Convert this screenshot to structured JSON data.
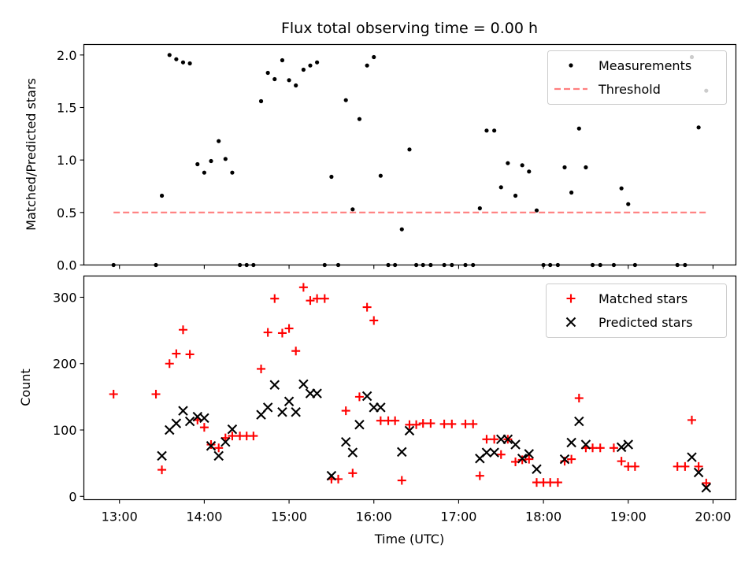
{
  "chart_data": [
    {
      "type": "scatter",
      "title": "Flux total observing time = 0.00 h",
      "xlabel": "",
      "ylabel": "Matched/Predicted stars",
      "xlim": [
        12.58,
        20.27
      ],
      "ylim": [
        0,
        2.1
      ],
      "x_ticks": [
        "13:00",
        "14:00",
        "15:00",
        "16:00",
        "17:00",
        "18:00",
        "19:00",
        "20:00"
      ],
      "y_ticks": [
        "0.0",
        "0.5",
        "1.0",
        "1.5",
        "2.0"
      ],
      "legend_position": "top-right",
      "grid": false,
      "series": [
        {
          "name": "Measurements",
          "marker": "dot",
          "color": "#000000",
          "points": [
            [
              12.93,
              0
            ],
            [
              13.43,
              0
            ],
            [
              13.5,
              0.66
            ],
            [
              13.59,
              2.0
            ],
            [
              13.67,
              1.96
            ],
            [
              13.75,
              1.93
            ],
            [
              13.83,
              1.92
            ],
            [
              13.92,
              0.96
            ],
            [
              14.0,
              0.88
            ],
            [
              14.08,
              0.99
            ],
            [
              14.17,
              1.18
            ],
            [
              14.25,
              1.01
            ],
            [
              14.33,
              0.88
            ],
            [
              14.42,
              0
            ],
            [
              14.5,
              0
            ],
            [
              14.58,
              0
            ],
            [
              14.67,
              1.56
            ],
            [
              14.75,
              1.83
            ],
            [
              14.83,
              1.77
            ],
            [
              14.92,
              1.95
            ],
            [
              15.0,
              1.76
            ],
            [
              15.08,
              1.71
            ],
            [
              15.17,
              1.86
            ],
            [
              15.25,
              1.9
            ],
            [
              15.33,
              1.93
            ],
            [
              15.42,
              0
            ],
            [
              15.5,
              0.84
            ],
            [
              15.58,
              0
            ],
            [
              15.67,
              1.57
            ],
            [
              15.75,
              0.53
            ],
            [
              15.83,
              1.39
            ],
            [
              15.92,
              1.9
            ],
            [
              16.0,
              1.98
            ],
            [
              16.08,
              0.85
            ],
            [
              16.17,
              0
            ],
            [
              16.25,
              0
            ],
            [
              16.33,
              0.34
            ],
            [
              16.42,
              1.1
            ],
            [
              16.5,
              0
            ],
            [
              16.58,
              0
            ],
            [
              16.67,
              0
            ],
            [
              16.83,
              0
            ],
            [
              16.92,
              0
            ],
            [
              17.08,
              0
            ],
            [
              17.17,
              0
            ],
            [
              17.25,
              0.54
            ],
            [
              17.33,
              1.28
            ],
            [
              17.42,
              1.28
            ],
            [
              17.5,
              0.74
            ],
            [
              17.58,
              0.97
            ],
            [
              17.67,
              0.66
            ],
            [
              17.75,
              0.95
            ],
            [
              17.83,
              0.89
            ],
            [
              17.92,
              0.52
            ],
            [
              18.0,
              0
            ],
            [
              18.08,
              0
            ],
            [
              18.17,
              0
            ],
            [
              18.25,
              0.93
            ],
            [
              18.33,
              0.69
            ],
            [
              18.42,
              1.3
            ],
            [
              18.5,
              0.93
            ],
            [
              18.58,
              0
            ],
            [
              18.67,
              0
            ],
            [
              18.83,
              0
            ],
            [
              18.92,
              0.73
            ],
            [
              19.0,
              0.58
            ],
            [
              19.08,
              0
            ],
            [
              19.58,
              0
            ],
            [
              19.67,
              0
            ],
            [
              19.75,
              1.98
            ],
            [
              19.83,
              1.31
            ],
            [
              19.92,
              1.66
            ]
          ]
        },
        {
          "name": "Threshold",
          "marker": "dashed-line",
          "color": "#ff7f7f",
          "points": [
            [
              12.93,
              0.5
            ],
            [
              19.92,
              0.5
            ]
          ]
        }
      ]
    },
    {
      "type": "scatter",
      "title": "",
      "xlabel": "Time (UTC)",
      "ylabel": "Count",
      "xlim": [
        12.58,
        20.27
      ],
      "ylim": [
        -5,
        332
      ],
      "x_ticks": [
        "13:00",
        "14:00",
        "15:00",
        "16:00",
        "17:00",
        "18:00",
        "19:00",
        "20:00"
      ],
      "y_ticks": [
        "0",
        "100",
        "200",
        "300"
      ],
      "legend_position": "top-right",
      "grid": false,
      "series": [
        {
          "name": "Matched stars",
          "marker": "plus",
          "color": "#ff0000",
          "points": [
            [
              12.93,
              154
            ],
            [
              13.43,
              154
            ],
            [
              13.5,
              40
            ],
            [
              13.59,
              200
            ],
            [
              13.67,
              215
            ],
            [
              13.75,
              251
            ],
            [
              13.83,
              214
            ],
            [
              13.92,
              115
            ],
            [
              14.0,
              104
            ],
            [
              14.08,
              78
            ],
            [
              14.17,
              73
            ],
            [
              14.25,
              88
            ],
            [
              14.33,
              91
            ],
            [
              14.42,
              91
            ],
            [
              14.5,
              91
            ],
            [
              14.58,
              91
            ],
            [
              14.67,
              192
            ],
            [
              14.75,
              247
            ],
            [
              14.83,
              298
            ],
            [
              14.92,
              246
            ],
            [
              15.0,
              253
            ],
            [
              15.08,
              219
            ],
            [
              15.17,
              315
            ],
            [
              15.25,
              295
            ],
            [
              15.33,
              298
            ],
            [
              15.42,
              298
            ],
            [
              15.5,
              26
            ],
            [
              15.58,
              26
            ],
            [
              15.67,
              129
            ],
            [
              15.75,
              35
            ],
            [
              15.83,
              150
            ],
            [
              15.92,
              285
            ],
            [
              16.0,
              265
            ],
            [
              16.08,
              114
            ],
            [
              16.17,
              114
            ],
            [
              16.25,
              114
            ],
            [
              16.33,
              24
            ],
            [
              16.42,
              108
            ],
            [
              16.5,
              108
            ],
            [
              16.58,
              110
            ],
            [
              16.67,
              110
            ],
            [
              16.83,
              109
            ],
            [
              16.92,
              109
            ],
            [
              17.08,
              109
            ],
            [
              17.17,
              109
            ],
            [
              17.25,
              31
            ],
            [
              17.33,
              86
            ],
            [
              17.42,
              86
            ],
            [
              17.5,
              63
            ],
            [
              17.58,
              86
            ],
            [
              17.67,
              52
            ],
            [
              17.75,
              55
            ],
            [
              17.83,
              56
            ],
            [
              17.92,
              21
            ],
            [
              18.0,
              21
            ],
            [
              18.08,
              21
            ],
            [
              18.17,
              21
            ],
            [
              18.25,
              53
            ],
            [
              18.33,
              56
            ],
            [
              18.42,
              148
            ],
            [
              18.5,
              73
            ],
            [
              18.58,
              73
            ],
            [
              18.67,
              73
            ],
            [
              18.83,
              73
            ],
            [
              18.92,
              53
            ],
            [
              19.0,
              45
            ],
            [
              19.08,
              45
            ],
            [
              19.58,
              45
            ],
            [
              19.67,
              45
            ],
            [
              19.75,
              115
            ],
            [
              19.83,
              45
            ],
            [
              19.92,
              20
            ]
          ]
        },
        {
          "name": "Predicted stars",
          "marker": "x",
          "color": "#000000",
          "points": [
            [
              13.5,
              61
            ],
            [
              13.59,
              100
            ],
            [
              13.67,
              110
            ],
            [
              13.75,
              129
            ],
            [
              13.83,
              113
            ],
            [
              13.92,
              120
            ],
            [
              14.0,
              118
            ],
            [
              14.08,
              76
            ],
            [
              14.17,
              61
            ],
            [
              14.25,
              82
            ],
            [
              14.33,
              101
            ],
            [
              14.67,
              123
            ],
            [
              14.75,
              134
            ],
            [
              14.83,
              168
            ],
            [
              14.92,
              127
            ],
            [
              15.0,
              143
            ],
            [
              15.08,
              127
            ],
            [
              15.17,
              169
            ],
            [
              15.25,
              155
            ],
            [
              15.33,
              155
            ],
            [
              15.5,
              31
            ],
            [
              15.67,
              82
            ],
            [
              15.75,
              66
            ],
            [
              15.83,
              108
            ],
            [
              15.92,
              151
            ],
            [
              16.0,
              134
            ],
            [
              16.08,
              134
            ],
            [
              16.33,
              67
            ],
            [
              16.42,
              99
            ],
            [
              17.25,
              57
            ],
            [
              17.33,
              66
            ],
            [
              17.42,
              66
            ],
            [
              17.5,
              86
            ],
            [
              17.58,
              86
            ],
            [
              17.67,
              78
            ],
            [
              17.75,
              57
            ],
            [
              17.83,
              64
            ],
            [
              17.92,
              41
            ],
            [
              18.25,
              56
            ],
            [
              18.33,
              81
            ],
            [
              18.42,
              113
            ],
            [
              18.5,
              78
            ],
            [
              18.92,
              74
            ],
            [
              19.0,
              78
            ],
            [
              19.75,
              59
            ],
            [
              19.83,
              36
            ],
            [
              19.92,
              13
            ]
          ]
        }
      ]
    }
  ]
}
